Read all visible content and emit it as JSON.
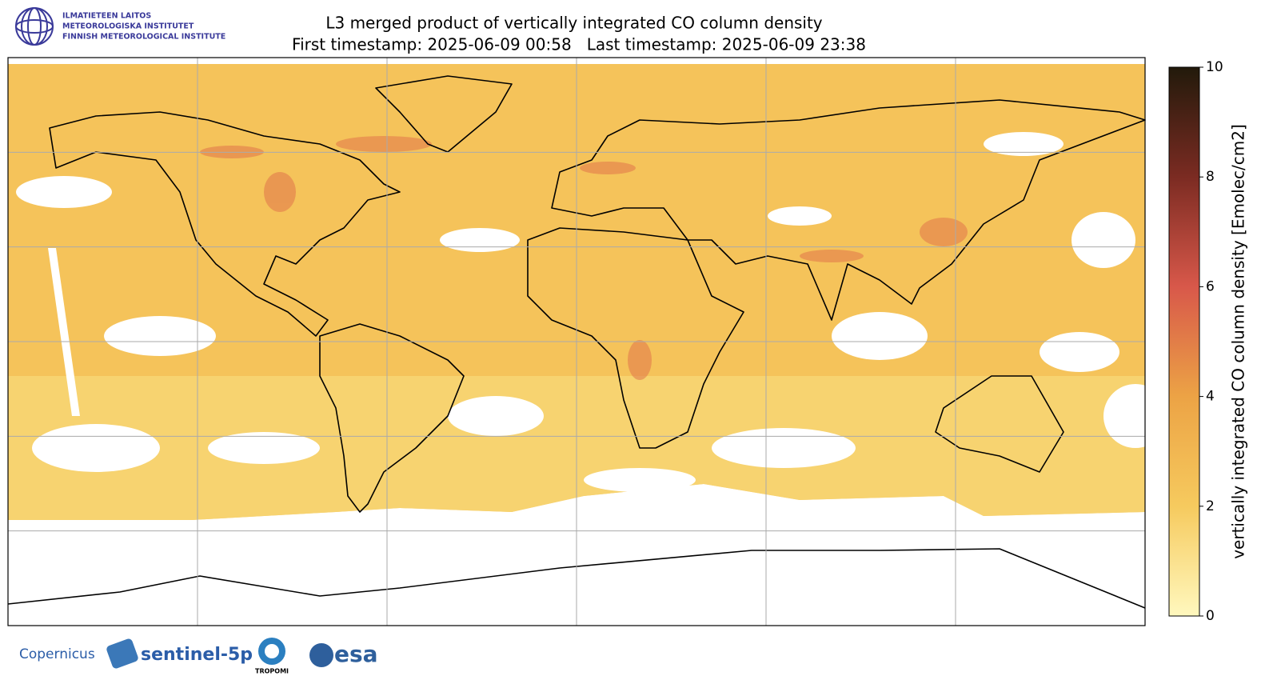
{
  "header": {
    "logo_lines": [
      "ILMATIETEEN LAITOS",
      "METEOROLOGISKA INSTITUTET",
      "FINNISH METEOROLOGICAL INSTITUTE"
    ],
    "title": "L3 merged product of vertically integrated CO column density",
    "subtitle": "First timestamp: 2025-06-09 00:58   Last timestamp: 2025-06-09 23:38"
  },
  "map": {
    "lonlim": [
      -180,
      180
    ],
    "latlim": [
      -90,
      90
    ],
    "lon_grid": [
      -120,
      -60,
      0,
      60,
      120
    ],
    "lat_grid": [
      60,
      30,
      0,
      -30,
      -60
    ]
  },
  "colorbar": {
    "label": "vertically integrated CO column density [Emolec/cm2]",
    "lim": [
      0,
      10
    ],
    "ticks": [
      0,
      2,
      4,
      6,
      8,
      10
    ],
    "colormap": [
      "#fff8be",
      "#f6ca5e",
      "#eca345",
      "#d8584a",
      "#7b2b22",
      "#221a0b"
    ]
  },
  "footer": {
    "logos": [
      "Copernicus",
      "sentinel-5p",
      "TROPOMI",
      "esa"
    ]
  }
}
